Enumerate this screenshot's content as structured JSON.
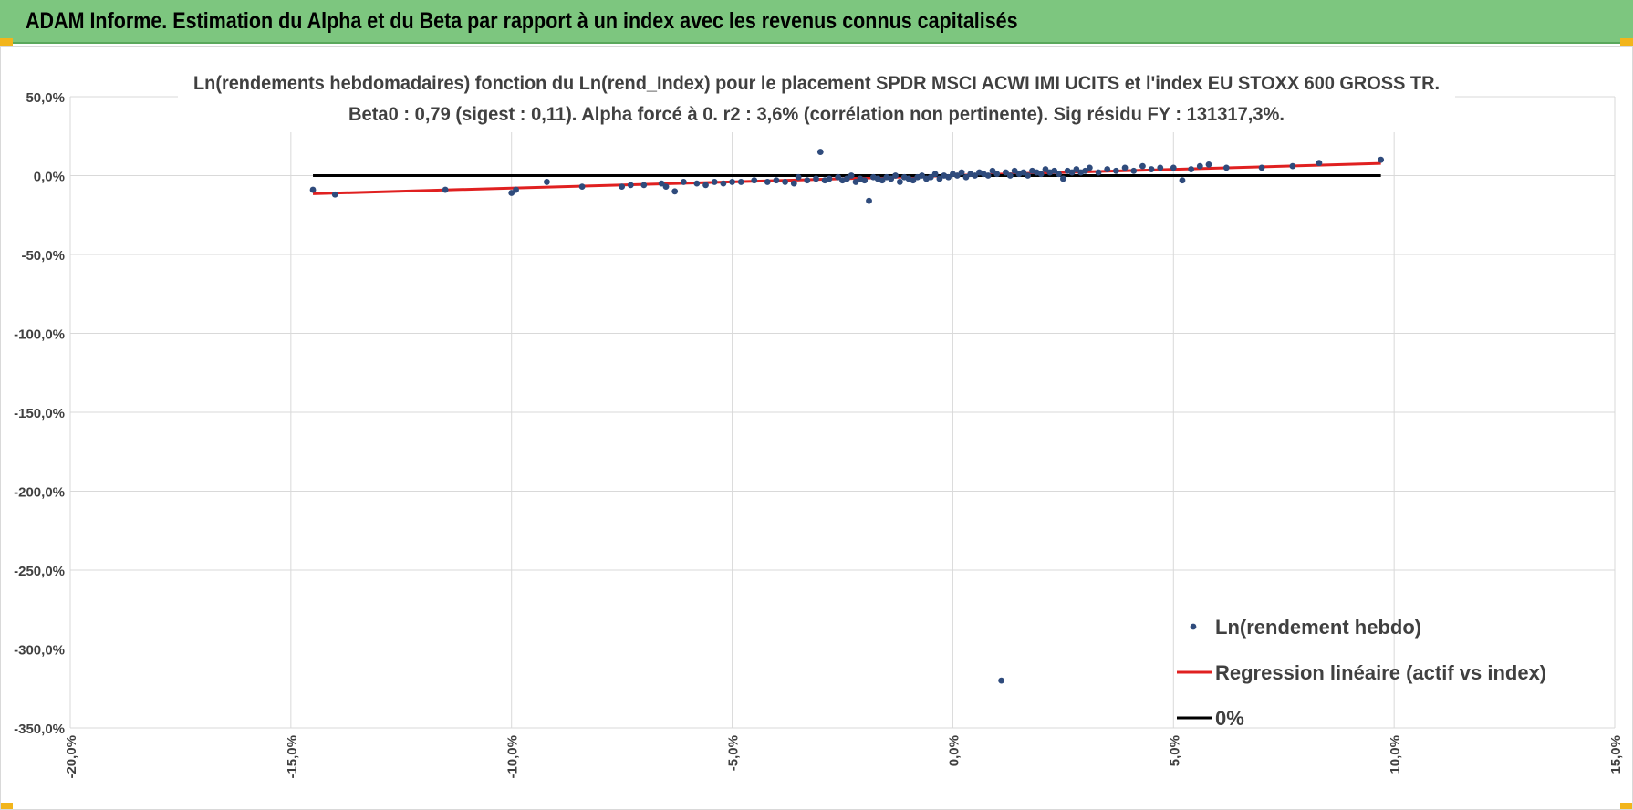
{
  "banner": {
    "title": "ADAM Informe. Estimation du Alpha et du Beta par rapport à un index avec les revenus connus capitalisés",
    "background_color": "#7dc67f",
    "corner_color": "#f2b51b"
  },
  "chart_data": {
    "type": "scatter",
    "title_line1": "Ln(rendements hebdomadaires) fonction du Ln(rend_Index) pour le placement SPDR MSCI ACWI IMI UCITS  et l'index EU STOXX 600 GROSS TR.",
    "title_line2": "Beta0 : 0,79  (sigest : 0,11).  Alpha forcé à 0. r2 : 3,6% (corrélation non pertinente). Sig résidu FY : 131317,3%.",
    "xlim": [
      -20,
      15
    ],
    "ylim": [
      -350,
      50
    ],
    "x_ticks": [
      -20,
      -15,
      -10,
      -5,
      0,
      5,
      10,
      15
    ],
    "y_ticks": [
      50,
      0,
      -50,
      -100,
      -150,
      -200,
      -250,
      -300,
      -350
    ],
    "x_tick_labels": [
      "-20,0%",
      "-15,0%",
      "-10,0%",
      "-5,0%",
      "0,0%",
      "5,0%",
      "10,0%",
      "15,0%"
    ],
    "y_tick_labels": [
      "50,0%",
      "0,0%",
      "-50,0%",
      "-100,0%",
      "-150,0%",
      "-200,0%",
      "-250,0%",
      "-300,0%",
      "-350,0%"
    ],
    "grid": true,
    "legend_position": "bottom-right",
    "series": [
      {
        "name": "Ln(rendement hebdo)",
        "kind": "scatter",
        "color": "#2f4b7c",
        "points": [
          [
            -14.5,
            -9
          ],
          [
            -14,
            -12
          ],
          [
            -11.5,
            -9
          ],
          [
            -10,
            -11
          ],
          [
            -9.9,
            -9
          ],
          [
            -9.2,
            -4
          ],
          [
            -8.4,
            -7
          ],
          [
            -7.5,
            -7
          ],
          [
            -7.3,
            -6
          ],
          [
            -7,
            -6
          ],
          [
            -6.6,
            -5
          ],
          [
            -6.5,
            -7
          ],
          [
            -6.3,
            -10
          ],
          [
            -6.1,
            -4
          ],
          [
            -5.8,
            -5
          ],
          [
            -5.6,
            -6
          ],
          [
            -5.4,
            -4
          ],
          [
            -5.2,
            -5
          ],
          [
            -5,
            -4
          ],
          [
            -4.8,
            -4
          ],
          [
            -4.5,
            -3
          ],
          [
            -4.2,
            -4
          ],
          [
            -4,
            -3
          ],
          [
            -3.8,
            -4
          ],
          [
            -3.6,
            -5
          ],
          [
            -3.5,
            -1
          ],
          [
            -3.3,
            -3
          ],
          [
            -3.1,
            -2
          ],
          [
            -3,
            15
          ],
          [
            -2.9,
            -3
          ],
          [
            -2.8,
            -2
          ],
          [
            -2.6,
            -1
          ],
          [
            -2.5,
            -3
          ],
          [
            -2.4,
            -2
          ],
          [
            -2.3,
            0
          ],
          [
            -2.2,
            -4
          ],
          [
            -2.1,
            -2
          ],
          [
            -2,
            -3
          ],
          [
            -1.9,
            -16
          ],
          [
            -1.8,
            -1
          ],
          [
            -1.7,
            -2
          ],
          [
            -1.6,
            -3
          ],
          [
            -1.5,
            -1
          ],
          [
            -1.4,
            -2
          ],
          [
            -1.3,
            0
          ],
          [
            -1.2,
            -4
          ],
          [
            -1.1,
            -1
          ],
          [
            -1,
            -2
          ],
          [
            -0.9,
            -3
          ],
          [
            -0.8,
            -1
          ],
          [
            -0.7,
            0
          ],
          [
            -0.6,
            -2
          ],
          [
            -0.5,
            -1
          ],
          [
            -0.4,
            1
          ],
          [
            -0.3,
            -2
          ],
          [
            -0.2,
            0
          ],
          [
            -0.1,
            -1
          ],
          [
            0,
            1
          ],
          [
            0.1,
            0
          ],
          [
            0.2,
            2
          ],
          [
            0.3,
            -1
          ],
          [
            0.4,
            1
          ],
          [
            0.5,
            0
          ],
          [
            0.6,
            2
          ],
          [
            0.7,
            1
          ],
          [
            0.8,
            0
          ],
          [
            0.9,
            3
          ],
          [
            1,
            1
          ],
          [
            1.1,
            -320
          ],
          [
            1.2,
            2
          ],
          [
            1.3,
            0
          ],
          [
            1.4,
            3
          ],
          [
            1.5,
            1
          ],
          [
            1.6,
            2
          ],
          [
            1.7,
            0
          ],
          [
            1.8,
            3
          ],
          [
            1.9,
            2
          ],
          [
            2,
            1
          ],
          [
            2.1,
            4
          ],
          [
            2.2,
            2
          ],
          [
            2.3,
            3
          ],
          [
            2.4,
            1
          ],
          [
            2.5,
            -2
          ],
          [
            2.6,
            3
          ],
          [
            2.7,
            2
          ],
          [
            2.8,
            4
          ],
          [
            2.9,
            2
          ],
          [
            3,
            3
          ],
          [
            3.1,
            5
          ],
          [
            3.3,
            2
          ],
          [
            3.5,
            4
          ],
          [
            3.7,
            3
          ],
          [
            3.9,
            5
          ],
          [
            4.1,
            3
          ],
          [
            4.3,
            6
          ],
          [
            4.5,
            4
          ],
          [
            4.7,
            5
          ],
          [
            5,
            5
          ],
          [
            5.2,
            -3
          ],
          [
            5.4,
            4
          ],
          [
            5.6,
            6
          ],
          [
            5.8,
            7
          ],
          [
            6.2,
            5
          ],
          [
            7,
            5
          ],
          [
            7.7,
            6
          ],
          [
            8.3,
            8
          ],
          [
            9.7,
            10
          ]
        ]
      },
      {
        "name": "Regression linéaire (actif vs index)",
        "kind": "line",
        "color": "#e02020",
        "points": [
          [
            -14.5,
            -11.5
          ],
          [
            9.7,
            7.7
          ]
        ]
      },
      {
        "name": "0%",
        "kind": "line",
        "color": "#000000",
        "points": [
          [
            -14.5,
            0
          ],
          [
            9.7,
            0
          ]
        ]
      }
    ]
  }
}
